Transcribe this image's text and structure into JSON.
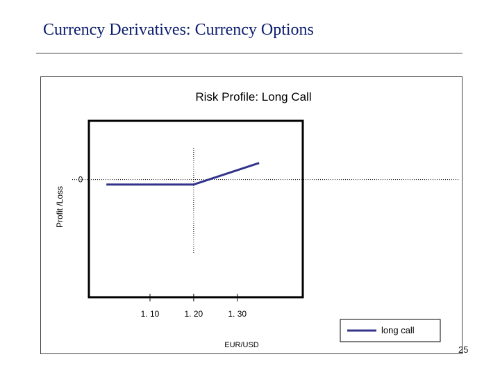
{
  "slide": {
    "title": "Currency Derivatives: Currency Options",
    "page_number": "25"
  },
  "chart_data": {
    "type": "line",
    "title": "Risk Profile: Long Call",
    "xlabel": "EUR/USD",
    "ylabel": "Profit /Loss",
    "x_ticks": [
      1.1,
      1.2,
      1.3
    ],
    "x_tick_labels": [
      "1. 10",
      "1. 20",
      "1. 30"
    ],
    "y_ticks": [
      0
    ],
    "y_tick_labels": [
      "0"
    ],
    "xlim": [
      0.96,
      1.45
    ],
    "ylim": [
      -0.06,
      0.03
    ],
    "strike": 1.2,
    "series": [
      {
        "name": "long call",
        "color": "#33338a",
        "x": [
          1.0,
          1.2,
          1.35
        ],
        "y": [
          -0.0025,
          -0.0025,
          0.0085
        ]
      }
    ],
    "legend_position": "bottom-right",
    "reference_lines": [
      "zero-line",
      "strike-line"
    ]
  }
}
